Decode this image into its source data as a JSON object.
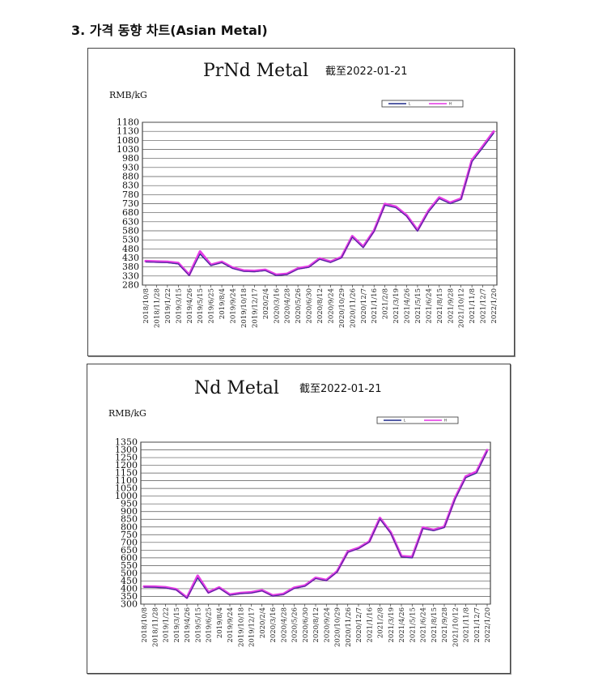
{
  "heading": "3. 가격 동향 차트(Asian Metal)",
  "colors": {
    "L": "#1f2a8a",
    "H": "#e433e4",
    "grid": "#555555"
  },
  "chart_data": [
    {
      "type": "line",
      "title": "PrNd Metal",
      "date_label": "截至2022-01-21",
      "ylabel": "RMB/kG",
      "ylim": [
        280,
        1180
      ],
      "yticks": [
        280,
        330,
        380,
        430,
        480,
        530,
        580,
        630,
        680,
        730,
        780,
        830,
        880,
        930,
        980,
        1030,
        1080,
        1130,
        1180
      ],
      "legend": [
        "L",
        "H"
      ],
      "x_labels": [
        "2018/10/8",
        "2018/11/28",
        "2019/1/22",
        "2019/3/15",
        "2019/4/26",
        "2019/5/15",
        "2019/6/25",
        "2019/8/4",
        "2019/9/24",
        "2019/10/18",
        "2019/12/17",
        "2020/2/4",
        "2020/3/16",
        "2020/4/28",
        "2020/5/26",
        "2020/6/30",
        "2020/8/12",
        "2020/9/24",
        "2020/10/29",
        "2020/11/26",
        "2020/12/7",
        "2021/1/16",
        "2021/2/8",
        "2021/3/19",
        "2021/4/26",
        "2021/5/15",
        "2021/6/24",
        "2021/8/15",
        "2021/9/28",
        "2021/10/12",
        "2021/11/8",
        "2021/12/7",
        "2022/1/20"
      ],
      "series": [
        {
          "name": "L",
          "values": [
            408,
            406,
            404,
            397,
            333,
            452,
            388,
            404,
            372,
            356,
            354,
            360,
            333,
            338,
            368,
            378,
            423,
            405,
            430,
            545,
            487,
            576,
            722,
            708,
            660,
            578,
            684,
            758,
            730,
            753,
            962,
            1040,
            1120
          ]
        },
        {
          "name": "H",
          "values": [
            412,
            410,
            408,
            402,
            337,
            466,
            392,
            408,
            376,
            360,
            358,
            364,
            337,
            342,
            372,
            382,
            427,
            409,
            434,
            550,
            492,
            581,
            728,
            713,
            665,
            583,
            690,
            764,
            735,
            758,
            970,
            1047,
            1128
          ]
        }
      ]
    },
    {
      "type": "line",
      "title": "Nd Metal",
      "date_label": "截至2022-01-21",
      "ylabel": "RMB/kG",
      "ylim": [
        300,
        1350
      ],
      "yticks": [
        300,
        350,
        400,
        450,
        500,
        550,
        600,
        650,
        700,
        750,
        800,
        850,
        900,
        950,
        1000,
        1050,
        1100,
        1150,
        1200,
        1250,
        1300,
        1350
      ],
      "legend": [
        "L",
        "H"
      ],
      "x_labels": [
        "2018/10/8",
        "2018/11/28",
        "2019/1/22",
        "2019/3/15",
        "2019/4/26",
        "2019/5/15",
        "2019/6/25",
        "2019/8/4",
        "2019/9/24",
        "2019/10/18",
        "2019/12/17",
        "2020/2/4",
        "2020/3/16",
        "2020/4/28",
        "2020/5/26",
        "2020/6/30",
        "2020/8/12",
        "2020/9/24",
        "2020/10/29",
        "2020/11/26",
        "2020/12/7",
        "2021/1/16",
        "2021/2/8",
        "2021/3/19",
        "2021/4/26",
        "2021/5/15",
        "2021/6/24",
        "2021/8/15",
        "2021/9/28",
        "2021/10/12",
        "2021/11/8",
        "2021/12/7",
        "2022/1/20"
      ],
      "series": [
        {
          "name": "L",
          "values": [
            410,
            409,
            405,
            392,
            338,
            470,
            372,
            404,
            358,
            368,
            372,
            386,
            352,
            362,
            402,
            416,
            466,
            452,
            508,
            636,
            660,
            702,
            852,
            760,
            606,
            600,
            790,
            776,
            796,
            980,
            1120,
            1150,
            1290
          ]
        },
        {
          "name": "H",
          "values": [
            414,
            413,
            409,
            396,
            342,
            484,
            376,
            408,
            362,
            372,
            376,
            390,
            356,
            366,
            406,
            420,
            470,
            456,
            512,
            640,
            664,
            706,
            858,
            765,
            611,
            606,
            796,
            781,
            801,
            987,
            1127,
            1158,
            1298
          ]
        }
      ]
    }
  ]
}
